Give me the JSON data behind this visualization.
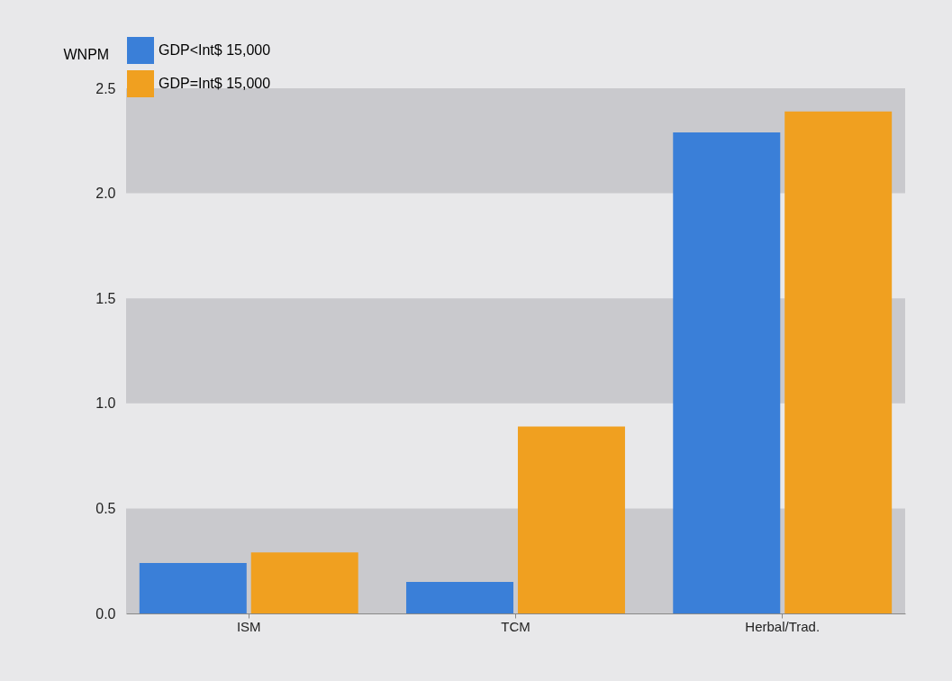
{
  "chart_data": {
    "type": "bar",
    "ylabel": "WNPM",
    "categories": [
      "ISM",
      "TCM",
      "Herbal/Trad."
    ],
    "series": [
      {
        "name": "GDP<Int$ 15,000",
        "color": "#3a7fd8",
        "values": [
          0.24,
          0.15,
          2.29
        ]
      },
      {
        "name": "GDP=Int$ 15,000",
        "color": "#f0a020",
        "values": [
          0.29,
          0.89,
          2.39
        ]
      }
    ],
    "ylim": [
      0,
      2.5
    ],
    "yticks": [
      {
        "value": 0,
        "label": "0.0"
      },
      0.5,
      {
        "value": 1,
        "label": "1.0"
      },
      1.5,
      {
        "value": 2,
        "label": "2.0"
      },
      2.5
    ],
    "bands": [
      {
        "axis": "y",
        "from": 0,
        "to": 0.5,
        "color": "#c9c9cd"
      },
      {
        "axis": "y",
        "from": 1,
        "to": 1.5,
        "color": "#c9c9cd"
      },
      {
        "axis": "y",
        "from": 2,
        "to": 2.5,
        "color": "#c9c9cd"
      }
    ],
    "legend": "top"
  }
}
